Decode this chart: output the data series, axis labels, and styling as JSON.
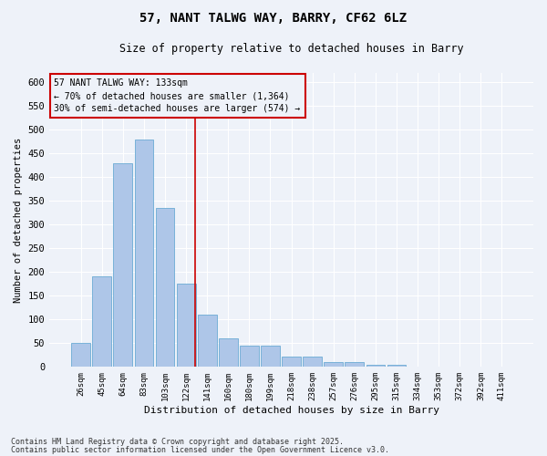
{
  "title_line1": "57, NANT TALWG WAY, BARRY, CF62 6LZ",
  "title_line2": "Size of property relative to detached houses in Barry",
  "xlabel": "Distribution of detached houses by size in Barry",
  "ylabel": "Number of detached properties",
  "categories": [
    "26sqm",
    "45sqm",
    "64sqm",
    "83sqm",
    "103sqm",
    "122sqm",
    "141sqm",
    "160sqm",
    "180sqm",
    "199sqm",
    "218sqm",
    "238sqm",
    "257sqm",
    "276sqm",
    "295sqm",
    "315sqm",
    "334sqm",
    "353sqm",
    "372sqm",
    "392sqm",
    "411sqm"
  ],
  "values": [
    50,
    190,
    430,
    480,
    335,
    175,
    110,
    60,
    45,
    45,
    22,
    22,
    10,
    10,
    4,
    4,
    1,
    1,
    1,
    1,
    1
  ],
  "bar_color": "#aec6e8",
  "bar_edge_color": "#6aaad4",
  "property_label": "57 NANT TALWG WAY: 133sqm",
  "annotation_line1": "← 70% of detached houses are smaller (1,364)",
  "annotation_line2": "30% of semi-detached houses are larger (574) →",
  "vline_color": "#cc0000",
  "vline_pos": 5.42,
  "annotation_box_color": "#cc0000",
  "background_color": "#eef2f9",
  "grid_color": "#ffffff",
  "ylim": [
    0,
    620
  ],
  "yticks": [
    0,
    50,
    100,
    150,
    200,
    250,
    300,
    350,
    400,
    450,
    500,
    550,
    600
  ],
  "footer_line1": "Contains HM Land Registry data © Crown copyright and database right 2025.",
  "footer_line2": "Contains public sector information licensed under the Open Government Licence v3.0."
}
